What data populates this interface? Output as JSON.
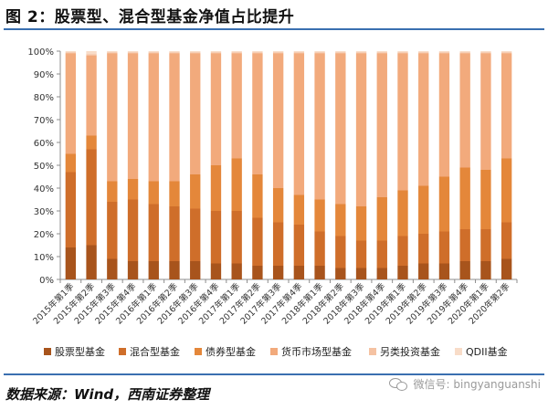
{
  "title": "图 2：股票型、混合型基金净值占比提升",
  "source": "数据来源：Wind，西南证券整理",
  "watermark": "微信号: bingyanguanshi",
  "chart_data": {
    "type": "bar",
    "stacked": true,
    "percent_stacked": true,
    "categories": [
      "2015年第1季",
      "2015年第2季",
      "2015年第3季",
      "2015年第4季",
      "2016年第1季",
      "2016年第2季",
      "2016年第3季",
      "2016年第4季",
      "2017年第1季",
      "2017年第2季",
      "2017年第3季",
      "2017年第4季",
      "2018年第1季",
      "2018年第2季",
      "2018年第3季",
      "2018年第4季",
      "2019年第1季",
      "2019年第2季",
      "2019年第3季",
      "2019年第4季",
      "2020年第1季",
      "2020年第2季"
    ],
    "yticks": [
      "0%",
      "10%",
      "20%",
      "30%",
      "40%",
      "50%",
      "60%",
      "70%",
      "80%",
      "90%",
      "100%"
    ],
    "ylim": [
      0,
      100
    ],
    "grid": false,
    "legend_position": "bottom",
    "series": [
      {
        "name": "股票型基金",
        "color": "#a8541c",
        "values": [
          14,
          15,
          9,
          8,
          8,
          8,
          8,
          7,
          7,
          6,
          6,
          6,
          6,
          5,
          5,
          5,
          6,
          7,
          7,
          8,
          8,
          9
        ]
      },
      {
        "name": "混合型基金",
        "color": "#cf6e2a",
        "values": [
          33,
          42,
          25,
          27,
          25,
          24,
          23,
          23,
          23,
          21,
          19,
          18,
          15,
          14,
          12,
          12,
          13,
          13,
          14,
          14,
          14,
          16
        ]
      },
      {
        "name": "债券型基金",
        "color": "#e4873a",
        "values": [
          8,
          6,
          9,
          9,
          10,
          11,
          15,
          20,
          23,
          19,
          15,
          13,
          14,
          14,
          15,
          19,
          20,
          21,
          24,
          27,
          26,
          28
        ]
      },
      {
        "name": "货币市场型基金",
        "color": "#f2aa7c",
        "values": [
          44,
          35,
          56,
          55,
          56,
          56,
          53,
          49,
          46,
          53,
          59,
          62,
          64,
          66,
          67,
          63,
          60,
          58,
          54,
          50,
          51,
          46
        ]
      },
      {
        "name": "另类投资基金",
        "color": "#f5c2a2",
        "values": [
          0.4,
          0.7,
          0.4,
          0.4,
          0.4,
          0.4,
          0.4,
          0.4,
          0.4,
          0.4,
          0.4,
          0.4,
          0.4,
          0.4,
          0.4,
          0.4,
          0.4,
          0.4,
          0.4,
          0.4,
          0.4,
          0.4
        ]
      },
      {
        "name": "QDII基金",
        "color": "#f8dcc8",
        "values": [
          0.6,
          1.3,
          0.6,
          0.6,
          0.6,
          0.6,
          0.6,
          0.6,
          0.6,
          0.6,
          0.6,
          0.6,
          0.6,
          0.6,
          0.6,
          0.6,
          0.6,
          0.6,
          0.6,
          0.6,
          0.6,
          0.6
        ]
      }
    ]
  }
}
